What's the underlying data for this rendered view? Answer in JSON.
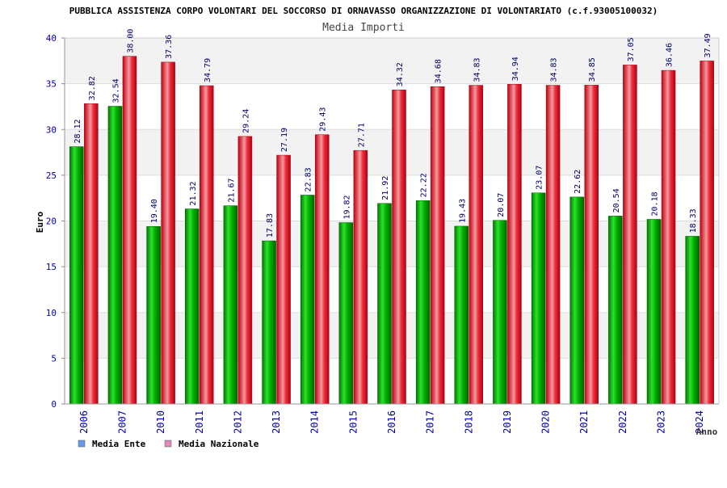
{
  "chart_data": {
    "type": "bar",
    "title": "PUBBLICA ASSISTENZA CORPO VOLONTARI DEL SOCCORSO DI ORNAVASSO ORGANIZZAZIONE DI VOLONTARIATO (c.f.93005100032)",
    "subtitle": "Media Importi",
    "xlabel": "Anno",
    "ylabel": "Euro",
    "ylim": [
      0,
      40
    ],
    "yticks": [
      0,
      5,
      10,
      15,
      20,
      25,
      30,
      35,
      40
    ],
    "grid": true,
    "legend_position": "bottom-left",
    "categories": [
      "2006",
      "2007",
      "2010",
      "2011",
      "2012",
      "2013",
      "2014",
      "2015",
      "2016",
      "2017",
      "2018",
      "2019",
      "2020",
      "2021",
      "2022",
      "2023",
      "2024"
    ],
    "series": [
      {
        "name": "Media Ente",
        "color": "#00a000",
        "legend_color": "#6699ee",
        "values": [
          28.12,
          32.54,
          19.4,
          21.32,
          21.67,
          17.83,
          22.83,
          19.82,
          21.92,
          22.22,
          19.43,
          20.07,
          23.07,
          22.62,
          20.54,
          20.18,
          18.33
        ],
        "labels": [
          "28.12",
          "32.54",
          "19.40",
          "21.32",
          "21.67",
          "17.83",
          "22.83",
          "19.82",
          "21.92",
          "22.22",
          "19.43",
          "20.07",
          "23.07",
          "22.62",
          "20.54",
          "20.18",
          "18.33"
        ]
      },
      {
        "name": "Media Nazionale",
        "color": "#e01020",
        "legend_color": "#dd88bb",
        "values": [
          32.82,
          38.0,
          37.36,
          34.79,
          29.24,
          27.19,
          29.43,
          27.71,
          34.32,
          34.68,
          34.83,
          34.94,
          34.83,
          34.85,
          37.05,
          36.46,
          37.49
        ],
        "labels": [
          "32.82",
          "38.00",
          "37.36",
          "34.79",
          "29.24",
          "27.19",
          "29.43",
          "27.71",
          "34.32",
          "34.68",
          "34.83",
          "34.94",
          "34.83",
          "34.85",
          "37.05",
          "36.46",
          "37.49"
        ]
      }
    ]
  },
  "colors": {
    "axis_text": "#0000aa",
    "grid_band": "#f2f2f2",
    "grid_line": "#dddddd",
    "title_text": "#000000"
  }
}
